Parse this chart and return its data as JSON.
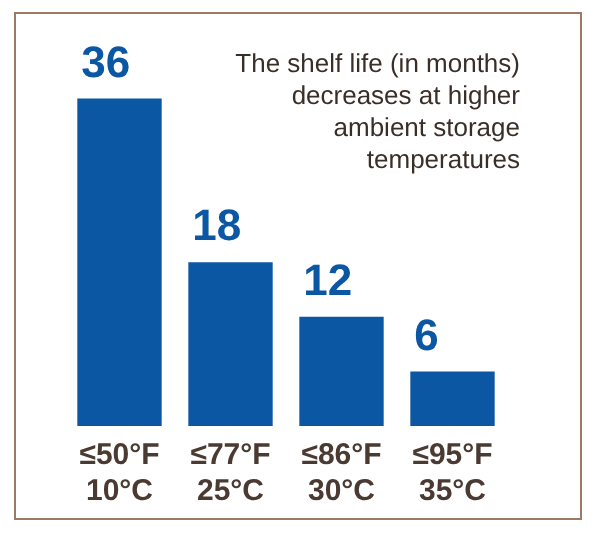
{
  "chart_data": {
    "type": "bar",
    "title": "The shelf life (in months) decreases at higher ambient storage temperatures",
    "categories": [
      "≤50°F\n10°C",
      "≤77°F\n25°C",
      "≤86°F\n30°C",
      "≤95°F\n35°C"
    ],
    "values": [
      36,
      18,
      12,
      6
    ],
    "color": "#0b57a4",
    "data_labels": true,
    "grid": false,
    "legend": false
  }
}
